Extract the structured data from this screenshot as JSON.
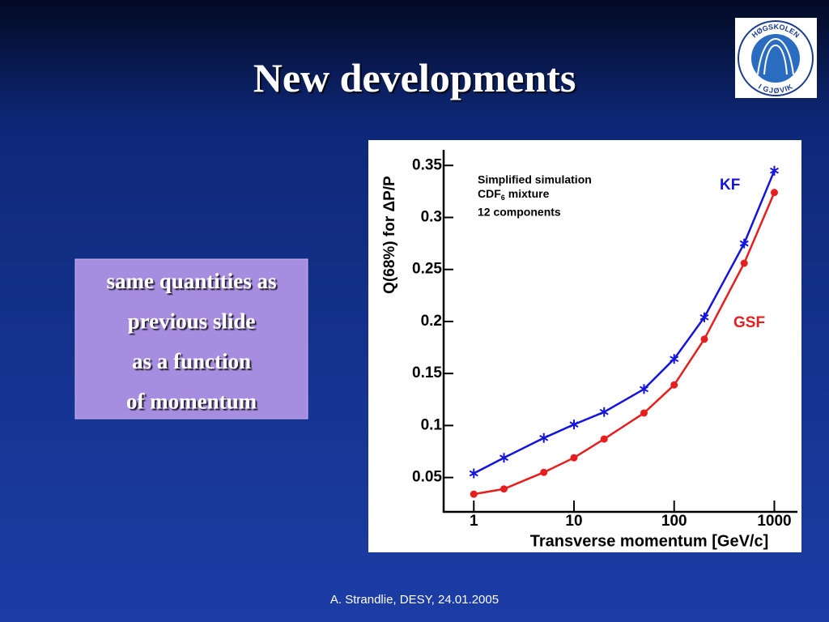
{
  "slide": {
    "title": "New developments",
    "textbox": [
      "same quantities as",
      "previous slide",
      "as a function",
      "of momentum"
    ],
    "footer": "A. Strandlie, DESY, 24.01.2005",
    "logo_text": [
      "HØGSKOLEN",
      "I GJØVIK"
    ]
  },
  "chart_data": {
    "type": "line",
    "x_label": "Transverse momentum [GeV/c]",
    "y_label": "Q(68%) for ΔP/P",
    "annotations": [
      "Simplified simulation",
      "CDF",
      "6",
      "mixture",
      "12 components"
    ],
    "x": [
      1,
      2,
      5,
      10,
      20,
      50,
      100,
      200,
      500,
      1000
    ],
    "series": [
      {
        "name": "KF",
        "color": "#1414dc",
        "marker": "star",
        "values": [
          0.054,
          0.069,
          0.088,
          0.101,
          0.113,
          0.135,
          0.164,
          0.204,
          0.275,
          0.345
        ]
      },
      {
        "name": "GSF",
        "color": "#e61e1e",
        "marker": "circle",
        "values": [
          0.034,
          0.039,
          0.055,
          0.069,
          0.087,
          0.112,
          0.139,
          0.183,
          0.256,
          0.324
        ]
      }
    ],
    "xlog": true,
    "xlim": [
      0.5,
      1700
    ],
    "xticks": [
      1,
      10,
      100,
      1000
    ],
    "ylim": [
      0.017,
      0.365
    ],
    "yticks": [
      0.05,
      0.1,
      0.15,
      0.2,
      0.25,
      0.3,
      0.35
    ]
  }
}
